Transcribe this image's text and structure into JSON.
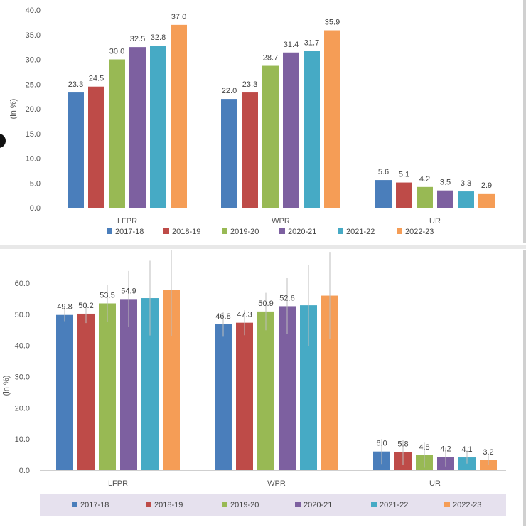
{
  "colors": [
    "#4a7ebb",
    "#be4b48",
    "#98b954",
    "#7d60a0",
    "#46aac5",
    "#f59d56"
  ],
  "chart_data": [
    {
      "type": "bar",
      "categories": [
        "LFPR",
        "WPR",
        "UR"
      ],
      "ylabel": "(in %)",
      "ylim": [
        0,
        40
      ],
      "yticks": [
        "0.0",
        "5.0",
        "10.0",
        "15.0",
        "20.0",
        "25.0",
        "30.0",
        "35.0",
        "40.0"
      ],
      "grid": false,
      "legend_position": "bottom",
      "series": [
        {
          "name": "2017-18",
          "values": [
            23.3,
            22.0,
            5.6
          ]
        },
        {
          "name": "2018-19",
          "values": [
            24.5,
            23.3,
            5.1
          ]
        },
        {
          "name": "2019-20",
          "values": [
            30.0,
            28.7,
            4.2
          ]
        },
        {
          "name": "2020-21",
          "values": [
            32.5,
            31.4,
            3.5
          ]
        },
        {
          "name": "2021-22",
          "values": [
            32.8,
            31.7,
            3.3
          ]
        },
        {
          "name": "2022-23",
          "values": [
            37.0,
            35.9,
            2.9
          ]
        }
      ],
      "labels": [
        [
          "23.3",
          "22.0",
          "5.6"
        ],
        [
          "24.5",
          "23.3",
          "5.1"
        ],
        [
          "30.0",
          "28.7",
          "4.2"
        ],
        [
          "32.5",
          "31.4",
          "3.5"
        ],
        [
          "32.8",
          "31.7",
          "3.3"
        ],
        [
          "37.0",
          "35.9",
          "2.9"
        ]
      ]
    },
    {
      "type": "bar",
      "categories": [
        "LFPR",
        "WPR",
        "UR"
      ],
      "ylabel": "(in %)",
      "ylim": [
        0,
        60
      ],
      "yticks": [
        "0.0",
        "10.0",
        "20.0",
        "30.0",
        "40.0",
        "50.0",
        "60.0"
      ],
      "grid": false,
      "error_bars": true,
      "legend_position": "bottom",
      "series": [
        {
          "name": "2017-18",
          "values": [
            49.8,
            46.8,
            6.0
          ]
        },
        {
          "name": "2018-19",
          "values": [
            50.2,
            47.3,
            5.8
          ]
        },
        {
          "name": "2019-20",
          "values": [
            53.5,
            50.9,
            4.8
          ]
        },
        {
          "name": "2020-21",
          "values": [
            54.9,
            52.6,
            4.2
          ]
        },
        {
          "name": "2021-22",
          "values": [
            55.2,
            52.9,
            4.1
          ]
        },
        {
          "name": "2022-23",
          "values": [
            57.9,
            56.0,
            3.2
          ]
        }
      ],
      "labels": [
        [
          "49.8",
          "46.8",
          "6.0"
        ],
        [
          "50.2",
          "47.3",
          "5.8"
        ],
        [
          "53.5",
          "50.9",
          "4.8"
        ],
        [
          "54.9",
          "52.6",
          "4.2"
        ],
        [
          "",
          "",
          "4.1"
        ],
        [
          "",
          "",
          "3.2"
        ]
      ]
    }
  ]
}
